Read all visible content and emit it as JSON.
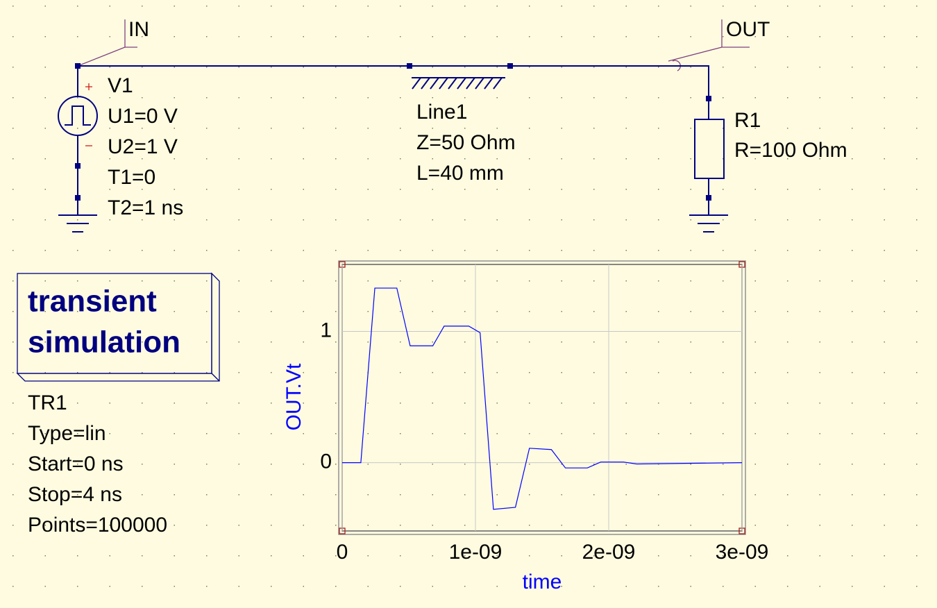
{
  "schematic": {
    "ports": {
      "in": "IN",
      "out": "OUT"
    },
    "source": {
      "name": "V1",
      "params": [
        "U1=0 V",
        "U2=1 V",
        "T1=0",
        "T2=1 ns"
      ]
    },
    "line": {
      "name": "Line1",
      "params": [
        "Z=50 Ohm",
        "L=40 mm"
      ]
    },
    "resistor": {
      "name": "R1",
      "params": [
        "R=100 Ohm"
      ]
    },
    "simulation": {
      "title": [
        "transient",
        "simulation"
      ],
      "name": "TR1",
      "params": [
        "Type=lin",
        "Start=0 ns",
        "Stop=4 ns",
        "Points=100000"
      ]
    }
  },
  "chart_data": {
    "type": "line",
    "x_label": "time",
    "y_label": "OUT.Vt",
    "x": [
      0,
      1.4e-10,
      2.45e-10,
      4.1e-10,
      5.1e-10,
      6.8e-10,
      7.65e-10,
      9.5e-10,
      1.035e-09,
      1.135e-09,
      1.3e-09,
      1.405e-09,
      1.57e-09,
      1.675e-09,
      1.84e-09,
      1.94e-09,
      2.11e-09,
      2.21e-09,
      3e-09
    ],
    "series": [
      {
        "color": "#0000ff",
        "values": [
          0,
          0,
          1.33,
          1.33,
          0.89,
          0.89,
          1.04,
          1.04,
          0.99,
          -0.355,
          -0.34,
          0.11,
          0.1,
          -0.04,
          -0.04,
          0.005,
          0.005,
          -0.01,
          0
        ]
      }
    ],
    "xlim": [
      0,
      3e-09
    ],
    "ylim": [
      -0.52,
      1.51
    ],
    "xticks": [
      0,
      {
        "value": 1e-09,
        "label": "1e-09"
      },
      {
        "value": 2e-09,
        "label": "2e-09"
      },
      {
        "value": 3e-09,
        "label": "3e-09"
      }
    ],
    "yticks": [
      0,
      1
    ],
    "grid": true
  }
}
